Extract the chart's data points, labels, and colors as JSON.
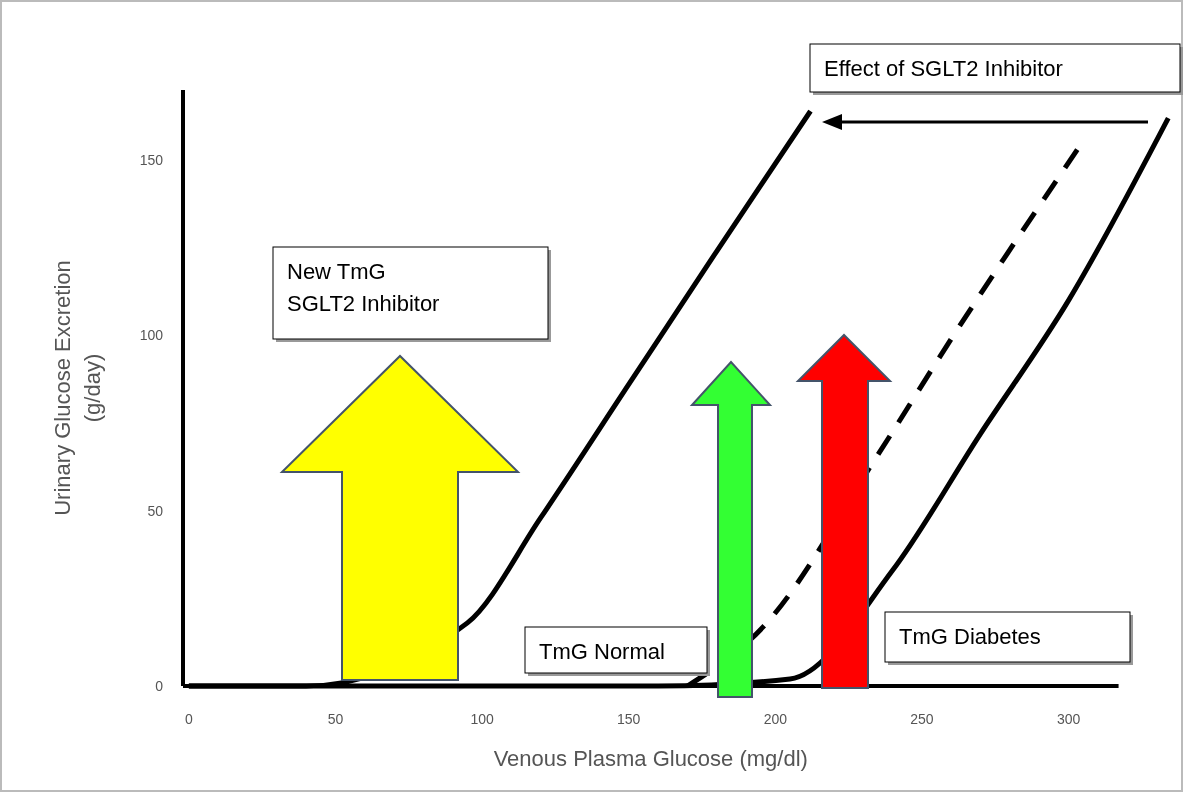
{
  "chart_data": {
    "type": "line",
    "xlabel": "Venous Plasma Glucose (mg/dl)",
    "ylabel": "Urinary Glucose Excretion\n(g/day)",
    "xlim": [
      -2,
      338
    ],
    "ylim": [
      0,
      170
    ],
    "xticks": [
      0,
      50,
      100,
      150,
      200,
      250,
      300
    ],
    "yticks": [
      0,
      50,
      100,
      150
    ],
    "grid": false,
    "marker": "none",
    "series": [
      {
        "color": "#000000",
        "line_style": "solid",
        "x": [
          0,
          40,
          95,
          120,
          150,
          180,
          212
        ],
        "values": [
          0,
          0,
          18,
          48,
          86,
          124,
          164
        ]
      },
      {
        "color": "#000000",
        "line_style": "dashed",
        "x": [
          170,
          196,
          235,
          260,
          303
        ],
        "values": [
          0,
          17,
          66,
          99,
          153
        ]
      },
      {
        "color": "#000000",
        "line_style": "solid",
        "x": [
          0,
          160,
          205,
          240,
          270,
          300,
          334
        ],
        "values": [
          0,
          0,
          2,
          33,
          72,
          110,
          162
        ]
      }
    ],
    "annotations": [
      "Effect of SGLT2 Inhibitor",
      "New TmG\nSGLT2 Inhibitor",
      "TmG Normal",
      "TmG Diabetes"
    ]
  }
}
